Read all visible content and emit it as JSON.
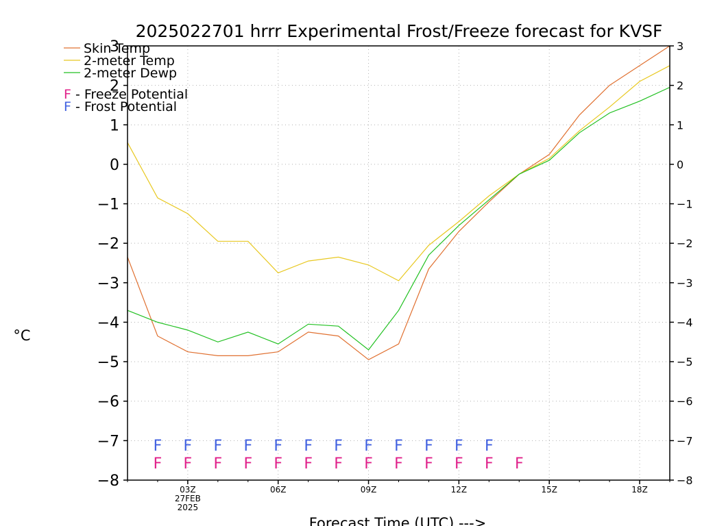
{
  "chart_data": {
    "type": "line",
    "title": "2025022701 hrrr Experimental Frost/Freeze forecast for KVSF",
    "xlabel": "Forecast Time (UTC) --->",
    "ylabel": "°C",
    "ylim": [
      -8,
      3
    ],
    "yticks": [
      -8,
      -7,
      -6,
      -5,
      -4,
      -3,
      -2,
      -1,
      0,
      1,
      2,
      3
    ],
    "xlim": [
      1,
      19
    ],
    "xticks": [
      {
        "x": 3,
        "label": "03Z",
        "sub": [
          "27FEB",
          "2025"
        ]
      },
      {
        "x": 6,
        "label": "06Z",
        "sub": []
      },
      {
        "x": 9,
        "label": "09Z",
        "sub": []
      },
      {
        "x": 12,
        "label": "12Z",
        "sub": []
      },
      {
        "x": 15,
        "label": "15Z",
        "sub": []
      },
      {
        "x": 18,
        "label": "18Z",
        "sub": []
      }
    ],
    "grid": true,
    "legend_position": "top-left",
    "x": [
      1,
      2,
      3,
      4,
      5,
      6,
      7,
      8,
      9,
      10,
      11,
      12,
      13,
      14,
      15,
      16,
      17,
      18,
      19
    ],
    "series": [
      {
        "name": "Skin Temp",
        "color": "#e07030",
        "values": [
          -2.35,
          -4.35,
          -4.75,
          -4.85,
          -4.85,
          -4.75,
          -4.25,
          -4.35,
          -4.95,
          -4.55,
          -2.65,
          -1.7,
          -0.95,
          -0.25,
          0.25,
          1.25,
          2.0,
          2.5,
          3.0
        ]
      },
      {
        "name": "2-meter Temp",
        "color": "#e8c820",
        "values": [
          0.55,
          -0.85,
          -1.25,
          -1.95,
          -1.95,
          -2.75,
          -2.45,
          -2.35,
          -2.55,
          -2.95,
          -2.05,
          -1.45,
          -0.8,
          -0.25,
          0.15,
          0.85,
          1.45,
          2.1,
          2.5
        ]
      },
      {
        "name": "2-meter Dewp",
        "color": "#20c020",
        "values": [
          -3.7,
          -4.0,
          -4.2,
          -4.5,
          -4.25,
          -4.55,
          -4.05,
          -4.1,
          -4.7,
          -3.7,
          -2.3,
          -1.55,
          -0.9,
          -0.25,
          0.1,
          0.8,
          1.3,
          1.6,
          1.95
        ]
      }
    ],
    "potential_legend": [
      {
        "letter": "F",
        "text": " - Freeze Potential",
        "color": "#e0208a"
      },
      {
        "letter": "F",
        "text": " - Frost Potential",
        "color": "#4060e0"
      }
    ],
    "frost_markers": {
      "y": -7.1,
      "color": "#4060e0",
      "letter": "F",
      "x": [
        2,
        3,
        4,
        5,
        6,
        7,
        8,
        9,
        10,
        11,
        12,
        13
      ]
    },
    "freeze_markers": {
      "y": -7.55,
      "color": "#e0208a",
      "letter": "F",
      "x": [
        2,
        3,
        4,
        5,
        6,
        7,
        8,
        9,
        10,
        11,
        12,
        13,
        14
      ]
    }
  }
}
